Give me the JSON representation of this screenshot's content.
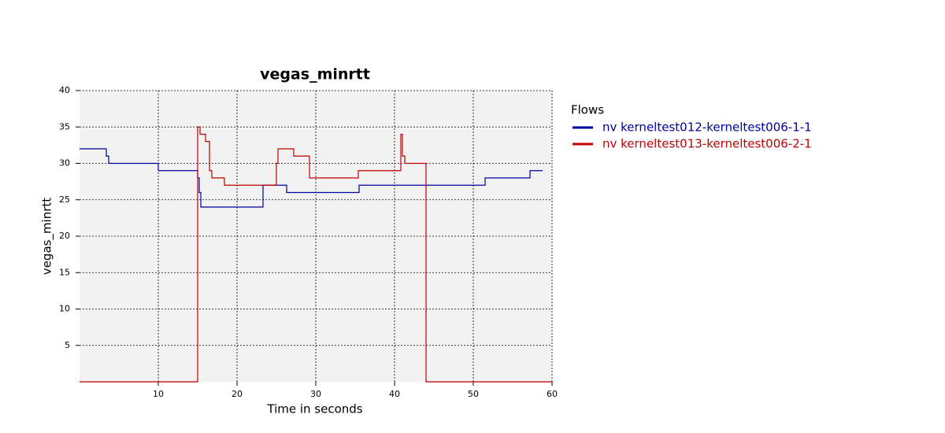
{
  "chart_data": {
    "type": "line",
    "title": "vegas_minrtt",
    "xlabel": "Time in seconds",
    "ylabel": "vegas_minrtt",
    "xlim": [
      0,
      60
    ],
    "ylim": [
      0,
      40
    ],
    "xticks": [
      10,
      20,
      30,
      40,
      50,
      60
    ],
    "yticks": [
      5,
      10,
      15,
      20,
      25,
      30,
      35,
      40
    ],
    "grid": true,
    "legend_title": "Flows",
    "legend": "right",
    "series": [
      {
        "name": "nv kerneltest012-kerneltest006-1-1",
        "color": "#0000a0",
        "x": [
          0,
          3.4,
          3.4,
          3.7,
          3.7,
          10,
          10,
          15,
          15,
          15.2,
          15.2,
          15.4,
          15.4,
          23.3,
          23.3,
          26.3,
          26.3,
          35.5,
          35.5,
          51.5,
          51.5,
          57.2,
          57.2,
          58.8
        ],
        "values": [
          32,
          32,
          31,
          31,
          30,
          30,
          29,
          29,
          28,
          28,
          26,
          26,
          24,
          24,
          27,
          27,
          26,
          26,
          27,
          27,
          28,
          28,
          29,
          29
        ]
      },
      {
        "name": "nv kerneltest013-kerneltest006-2-1",
        "color": "#c00000",
        "x": [
          0,
          15,
          15,
          15.3,
          15.3,
          16,
          16,
          16.5,
          16.5,
          16.8,
          16.8,
          18.4,
          18.4,
          25,
          25,
          25.2,
          25.2,
          27.2,
          27.2,
          29.2,
          29.2,
          35.4,
          35.4,
          40.8,
          40.8,
          41,
          41,
          41.3,
          41.3,
          44,
          44,
          60
        ],
        "values": [
          0,
          0,
          35,
          35,
          34,
          34,
          33,
          33,
          29,
          29,
          28,
          28,
          27,
          27,
          30,
          30,
          32,
          32,
          31,
          31,
          28,
          28,
          29,
          29,
          34,
          34,
          31,
          31,
          30,
          30,
          0,
          0
        ]
      }
    ]
  }
}
